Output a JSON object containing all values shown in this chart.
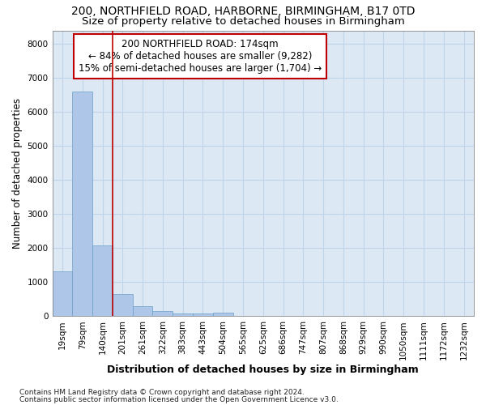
{
  "title1": "200, NORTHFIELD ROAD, HARBORNE, BIRMINGHAM, B17 0TD",
  "title2": "Size of property relative to detached houses in Birmingham",
  "xlabel": "Distribution of detached houses by size in Birmingham",
  "ylabel": "Number of detached properties",
  "footnote1": "Contains HM Land Registry data © Crown copyright and database right 2024.",
  "footnote2": "Contains public sector information licensed under the Open Government Licence v3.0.",
  "annotation_line1": "200 NORTHFIELD ROAD: 174sqm",
  "annotation_line2": "← 84% of detached houses are smaller (9,282)",
  "annotation_line3": "15% of semi-detached houses are larger (1,704) →",
  "bar_labels": [
    "19sqm",
    "79sqm",
    "140sqm",
    "201sqm",
    "261sqm",
    "322sqm",
    "383sqm",
    "443sqm",
    "504sqm",
    "565sqm",
    "625sqm",
    "686sqm",
    "747sqm",
    "807sqm",
    "868sqm",
    "929sqm",
    "990sqm",
    "1050sqm",
    "1111sqm",
    "1172sqm",
    "1232sqm"
  ],
  "bar_values": [
    1310,
    6600,
    2080,
    660,
    300,
    155,
    90,
    70,
    115,
    5,
    5,
    0,
    0,
    0,
    0,
    0,
    0,
    0,
    0,
    0,
    0
  ],
  "bar_color": "#aec6e8",
  "bar_edge_color": "#6a9fc8",
  "vline_x": 2.5,
  "vline_color": "#c00000",
  "ylim": [
    0,
    8400
  ],
  "yticks": [
    0,
    1000,
    2000,
    3000,
    4000,
    5000,
    6000,
    7000,
    8000
  ],
  "grid_color": "#c0d4e8",
  "bg_color": "#dce8f4",
  "title1_fontsize": 10,
  "title2_fontsize": 9.5,
  "xlabel_fontsize": 9,
  "ylabel_fontsize": 8.5,
  "tick_fontsize": 7.5,
  "annotation_fontsize": 8.5,
  "footnote_fontsize": 6.5
}
